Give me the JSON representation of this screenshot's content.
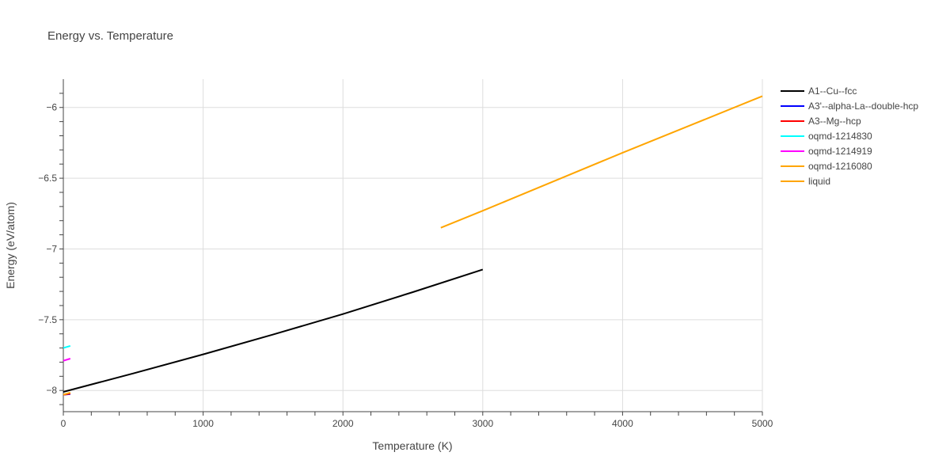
{
  "chart_data": {
    "type": "line",
    "title": "Energy vs. Temperature",
    "xlabel": "Temperature (K)",
    "ylabel": "Energy (eV/atom)",
    "xlim": [
      0,
      5000
    ],
    "ylim": [
      -8.15,
      -5.8
    ],
    "x_ticks": [
      0,
      1000,
      2000,
      3000,
      4000,
      5000
    ],
    "x_tick_labels": [
      "0",
      "1000",
      "2000",
      "3000",
      "4000",
      "5000"
    ],
    "y_ticks": [
      -8,
      -7.5,
      -7,
      -6.5,
      -6
    ],
    "y_tick_labels": [
      "−8",
      "−7.5",
      "−7",
      "−6.5",
      "−6"
    ],
    "grid": true,
    "legend_position": "right",
    "series": [
      {
        "name": "A1--Cu--fcc",
        "color": "#000000",
        "x": [
          0,
          500,
          1000,
          1500,
          2000,
          2500,
          3000
        ],
        "y": [
          -8.01,
          -7.88,
          -7.745,
          -7.605,
          -7.46,
          -7.305,
          -7.145
        ]
      },
      {
        "name": "A3'--alpha-La--double-hcp",
        "color": "#0000ff",
        "x": [
          0,
          50
        ],
        "y": [
          -8.03,
          -8.025
        ]
      },
      {
        "name": "A3--Mg--hcp",
        "color": "#ff0000",
        "x": [
          0,
          50
        ],
        "y": [
          -8.03,
          -8.022
        ]
      },
      {
        "name": "oqmd-1214830",
        "color": "#00ffff",
        "x": [
          0,
          50
        ],
        "y": [
          -7.7,
          -7.685
        ]
      },
      {
        "name": "oqmd-1214919",
        "color": "#ff00ff",
        "x": [
          0,
          50
        ],
        "y": [
          -7.79,
          -7.775
        ]
      },
      {
        "name": "oqmd-1216080",
        "color": "#ffa500",
        "x": [
          0,
          50
        ],
        "y": [
          -8.03,
          -8.015
        ]
      },
      {
        "name": "liquid",
        "color": "#ffa500",
        "x": [
          2700,
          3000,
          3500,
          4000,
          4500,
          5000
        ],
        "y": [
          -6.85,
          -6.73,
          -6.525,
          -6.32,
          -6.12,
          -5.92
        ]
      }
    ]
  }
}
